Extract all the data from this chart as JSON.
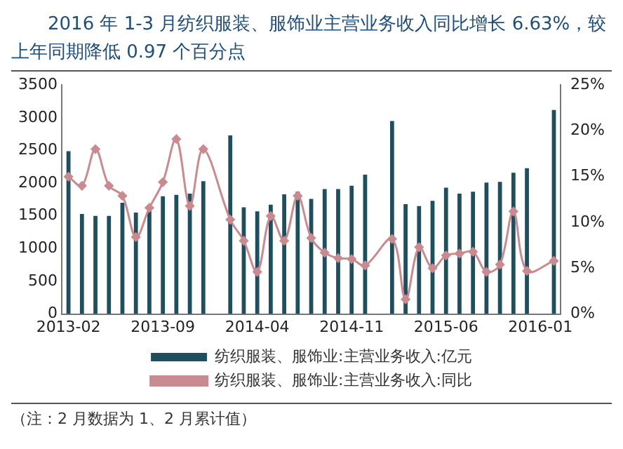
{
  "chart_data": {
    "type": "bar",
    "title": "2016 年 1-3 月纺织服装、服饰业主营业务收入同比增长 6.63%，较上年同期降低 0.97 个百分点",
    "annotations": [
      "（注：2 月数据为 1、2 月累计值）"
    ],
    "categories": [
      "2013-02",
      null,
      null,
      null,
      null,
      null,
      null,
      "2013-09",
      null,
      null,
      null,
      null,
      null,
      null,
      "2014-04",
      null,
      null,
      null,
      null,
      null,
      null,
      "2014-11",
      null,
      null,
      null,
      null,
      null,
      null,
      "2015-06",
      null,
      null,
      null,
      null,
      null,
      null,
      "2016-01",
      null
    ],
    "series": [
      {
        "name": "纺织服装、服饰业:主营业务收入:亿元",
        "color": "#1f4e5f",
        "values": [
          2490,
          1530,
          1500,
          1500,
          1700,
          1550,
          1600,
          1800,
          1820,
          1840,
          2030,
          null,
          2730,
          1630,
          1570,
          1670,
          1830,
          1870,
          1760,
          1910,
          1910,
          1960,
          2130,
          null,
          2950,
          1680,
          1650,
          1730,
          1930,
          1840,
          1870,
          2010,
          2020,
          2160,
          2230,
          null,
          3120
        ]
      },
      {
        "name": "纺织服装、服饰业:主营业务收入:同比",
        "type": "line",
        "axis": "y2",
        "color": "#c98a90",
        "marker": "diamond",
        "values": [
          15.0,
          14.0,
          18.0,
          14.0,
          12.9,
          8.4,
          11.6,
          14.4,
          19.1,
          11.8,
          18.0,
          null,
          10.3,
          8.0,
          4.6,
          10.7,
          8.0,
          12.9,
          8.3,
          6.7,
          6.1,
          6.0,
          5.3,
          null,
          8.2,
          1.6,
          7.3,
          5.0,
          6.4,
          6.6,
          6.8,
          4.6,
          5.4,
          11.2,
          4.7,
          null,
          5.8
        ]
      }
    ],
    "ylim": [
      0,
      3500
    ],
    "yticks": [
      0,
      500,
      1000,
      1500,
      2000,
      2500,
      3000,
      3500
    ],
    "y2lim": [
      0,
      25
    ],
    "y2ticks": [
      {
        "value": 0,
        "label": "0%"
      },
      {
        "value": 5,
        "label": "5%"
      },
      {
        "value": 10,
        "label": "10%"
      },
      {
        "value": 15,
        "label": "15%"
      },
      {
        "value": 20,
        "label": "20%"
      },
      {
        "value": 25,
        "label": "25%"
      }
    ],
    "grid": false,
    "legend": "bottom"
  }
}
